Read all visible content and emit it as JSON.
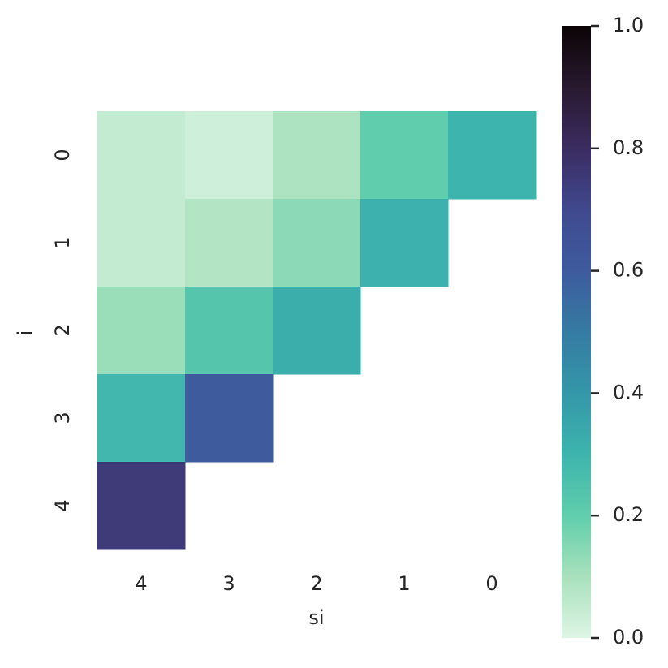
{
  "chart_data": {
    "type": "heatmap",
    "xlabel": "si",
    "ylabel": "i",
    "x": [
      "4",
      "3",
      "2",
      "1",
      "0"
    ],
    "y": [
      "0",
      "1",
      "2",
      "3",
      "4"
    ],
    "values": [
      [
        0.05,
        0.03,
        0.09,
        0.2,
        0.3
      ],
      [
        0.05,
        0.08,
        0.14,
        0.31,
        null
      ],
      [
        0.12,
        0.23,
        0.32,
        null,
        null
      ],
      [
        0.29,
        0.6,
        null,
        null,
        null
      ],
      [
        0.75,
        null,
        null,
        null,
        null
      ]
    ],
    "clim": [
      0,
      1
    ],
    "cticks": [
      {
        "value": 0,
        "label": "0.0"
      },
      0.2,
      0.4,
      0.6,
      0.8,
      {
        "value": 1,
        "label": "1.0"
      }
    ],
    "colormap": [
      "#def5e5",
      "#a8e1bc",
      "#60ceac",
      "#3db4ad",
      "#3497a9",
      "#357ba2",
      "#3e5b9e",
      "#40498e",
      "#3b2c61",
      "#28192f",
      "#0b0405"
    ]
  }
}
